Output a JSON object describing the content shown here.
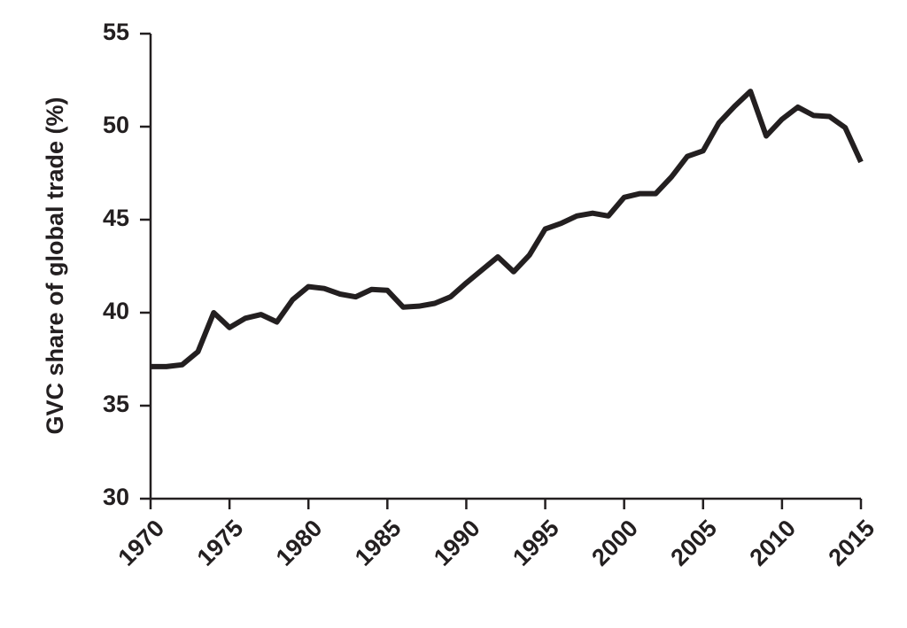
{
  "chart_data": {
    "type": "line",
    "y_label": "GVC share of  global trade (%)",
    "x": [
      1970,
      1971,
      1972,
      1973,
      1974,
      1975,
      1976,
      1977,
      1978,
      1979,
      1980,
      1981,
      1982,
      1983,
      1984,
      1985,
      1986,
      1987,
      1988,
      1989,
      1990,
      1991,
      1992,
      1993,
      1994,
      1995,
      1996,
      1997,
      1998,
      1999,
      2000,
      2001,
      2002,
      2003,
      2004,
      2005,
      2006,
      2007,
      2008,
      2009,
      2010,
      2011,
      2012,
      2013,
      2014,
      2015
    ],
    "values": [
      37.1,
      37.1,
      37.2,
      37.9,
      40.0,
      39.2,
      39.7,
      39.9,
      39.5,
      40.7,
      41.4,
      41.3,
      41.0,
      40.85,
      41.25,
      41.2,
      40.3,
      40.35,
      40.5,
      40.85,
      41.6,
      42.3,
      43.0,
      42.2,
      43.1,
      44.5,
      44.8,
      45.2,
      45.35,
      45.2,
      46.2,
      46.4,
      46.4,
      47.3,
      48.4,
      48.7,
      50.2,
      51.1,
      51.9,
      49.5,
      50.4,
      51.05,
      50.6,
      50.55,
      49.95,
      48.1
    ],
    "color": "#231f20",
    "xlim": [
      1970,
      2015
    ],
    "xticks": [
      1970,
      1975,
      1980,
      1985,
      1990,
      1995,
      2000,
      2005,
      2010,
      2015
    ],
    "ylim": [
      30,
      55
    ],
    "yticks": [
      30,
      35,
      40,
      45,
      50,
      55
    ]
  }
}
